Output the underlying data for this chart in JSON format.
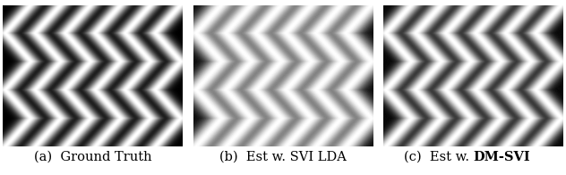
{
  "n_panels": 3,
  "caption_texts": [
    "(a)  Ground Truth",
    "(b)  Est w. SVI LDA",
    "(c)  Est w. DM-SVI"
  ],
  "caption_bold_part": [
    "",
    "",
    "DM-SVI"
  ],
  "caption_normal_part": [
    "(a)  Ground Truth",
    "(b)  Est w. SVI LDA",
    "(c)  Est w. "
  ],
  "bg_color": "#ffffff",
  "font_size": 10.5,
  "n_rows": 400,
  "n_cols": 200,
  "n_topics": 6,
  "sigma_a": 5.5,
  "sigma_b": 9.0,
  "sigma_c": 6.5,
  "amplitude_a": 0.85,
  "amplitude_b": 0.85,
  "amplitude_c": 0.85,
  "freq_a": 2.5,
  "freq_b": 2.5,
  "freq_c": 2.5
}
